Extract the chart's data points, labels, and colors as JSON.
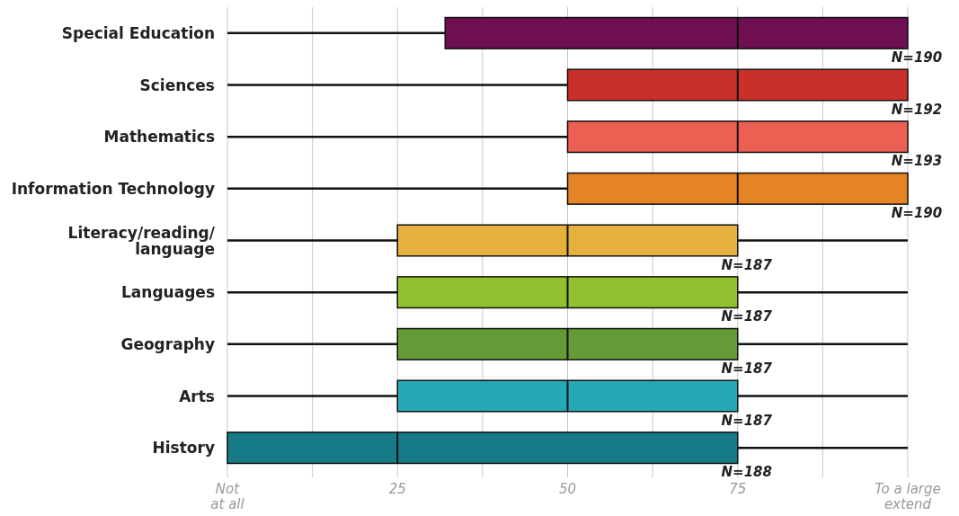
{
  "chart_data": {
    "type": "box",
    "orientation": "horizontal",
    "categories": [
      "Special Education",
      "Sciences",
      "Mathematics",
      "Information Technology",
      "Literacy/reading/\nlanguage",
      "Languages",
      "Geography",
      "Arts",
      "History"
    ],
    "boxes": [
      {
        "low": 0,
        "q1": 32,
        "median": 75,
        "q3": 100,
        "high": 100
      },
      {
        "low": 0,
        "q1": 50,
        "median": 75,
        "q3": 100,
        "high": 100
      },
      {
        "low": 0,
        "q1": 50,
        "median": 75,
        "q3": 100,
        "high": 100
      },
      {
        "low": 0,
        "q1": 50,
        "median": 75,
        "q3": 100,
        "high": 100
      },
      {
        "low": 0,
        "q1": 25,
        "median": 50,
        "q3": 75,
        "high": 100
      },
      {
        "low": 0,
        "q1": 25,
        "median": 50,
        "q3": 75,
        "high": 100
      },
      {
        "low": 0,
        "q1": 25,
        "median": 50,
        "q3": 75,
        "high": 100
      },
      {
        "low": 0,
        "q1": 25,
        "median": 50,
        "q3": 75,
        "high": 100
      },
      {
        "low": 0,
        "q1": 0,
        "median": 25,
        "q3": 75,
        "high": 100
      }
    ],
    "colors": [
      "#6d0f50",
      "#c9302a",
      "#ec5f53",
      "#e58426",
      "#e6b03e",
      "#92c030",
      "#649b36",
      "#26a8b6",
      "#177a87"
    ],
    "xlim": [
      0,
      100
    ],
    "xticks": [
      {
        "value": 0,
        "label": "Not\nat all"
      },
      {
        "value": 12.5,
        "label": null
      },
      25,
      {
        "value": 37.5,
        "label": null
      },
      50,
      {
        "value": 62.5,
        "label": null
      },
      75,
      {
        "value": 87.5,
        "label": null
      },
      {
        "value": 100,
        "label": "To a large\nextend"
      }
    ],
    "grid": "x",
    "annotations": [
      "N=190",
      "N=192",
      "N=193",
      "N=190",
      "N=187",
      "N=187",
      "N=187",
      "N=187",
      "N=188"
    ]
  }
}
